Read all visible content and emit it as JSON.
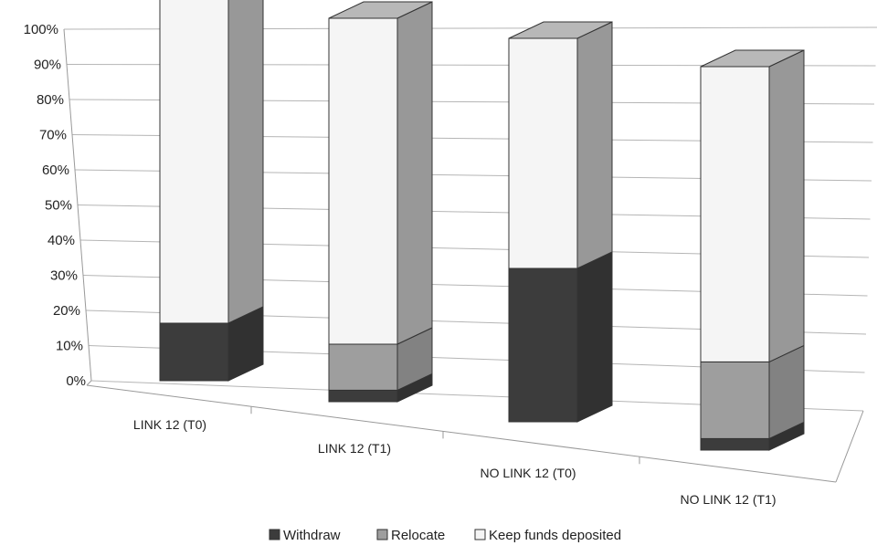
{
  "chart_data": {
    "type": "bar",
    "stacked": true,
    "three_d": true,
    "categories": [
      "LINK 12 (T0)",
      "LINK 12 (T1)",
      "NO LINK 12 (T0)",
      "NO LINK 12 (T1)"
    ],
    "series": [
      {
        "name": "Withdraw",
        "values": [
          15,
          3,
          40,
          3
        ]
      },
      {
        "name": "Relocate",
        "values": [
          0,
          12,
          0,
          20
        ]
      },
      {
        "name": "Keep funds deposited",
        "values": [
          85,
          85,
          60,
          77
        ]
      }
    ],
    "colors": [
      "#3c3c3c",
      "#9e9e9e",
      "#f5f5f5"
    ],
    "ylim": [
      0,
      100
    ],
    "yticks": [
      "0%",
      "10%",
      "20%",
      "30%",
      "40%",
      "50%",
      "60%",
      "70%",
      "80%",
      "90%",
      "100%"
    ],
    "grid": true,
    "legend": "bottom"
  }
}
